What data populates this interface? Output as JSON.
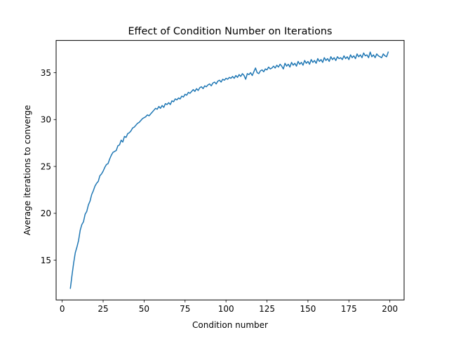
{
  "chart_data": {
    "type": "line",
    "title": "Effect of Condition Number on Iterations",
    "xlabel": "Condition number",
    "ylabel": "Average iterations to converge",
    "xlim": [
      -3.7,
      208.7
    ],
    "ylim": [
      10.76,
      38.44
    ],
    "xticks": [
      0,
      25,
      50,
      75,
      100,
      125,
      150,
      175,
      200
    ],
    "yticks": [
      15,
      20,
      25,
      30,
      35
    ],
    "grid": false,
    "line_color": "#1f77b4",
    "series": [
      {
        "x": [
          5,
          6,
          7,
          8,
          9,
          10,
          11,
          12,
          13,
          14,
          15,
          16,
          17,
          18,
          19,
          20,
          21,
          22,
          23,
          24,
          25,
          26,
          27,
          28,
          29,
          30,
          31,
          32,
          33,
          34,
          35,
          36,
          37,
          38,
          39,
          40,
          41,
          42,
          43,
          44,
          45,
          46,
          47,
          48,
          49,
          50,
          51,
          52,
          53,
          54,
          55,
          56,
          57,
          58,
          59,
          60,
          61,
          62,
          63,
          64,
          65,
          66,
          67,
          68,
          69,
          70,
          71,
          72,
          73,
          74,
          75,
          76,
          77,
          78,
          79,
          80,
          81,
          82,
          83,
          84,
          85,
          86,
          87,
          88,
          89,
          90,
          91,
          92,
          93,
          94,
          95,
          96,
          97,
          98,
          99,
          100,
          101,
          102,
          103,
          104,
          105,
          106,
          107,
          108,
          109,
          110,
          111,
          112,
          113,
          114,
          115,
          116,
          117,
          118,
          119,
          120,
          121,
          122,
          123,
          124,
          125,
          126,
          127,
          128,
          129,
          130,
          131,
          132,
          133,
          134,
          135,
          136,
          137,
          138,
          139,
          140,
          141,
          142,
          143,
          144,
          145,
          146,
          147,
          148,
          149,
          150,
          151,
          152,
          153,
          154,
          155,
          156,
          157,
          158,
          159,
          160,
          161,
          162,
          163,
          164,
          165,
          166,
          167,
          168,
          169,
          170,
          171,
          172,
          173,
          174,
          175,
          176,
          177,
          178,
          179,
          180,
          181,
          182,
          183,
          184,
          185,
          186,
          187,
          188,
          189,
          190,
          191,
          192,
          193,
          194,
          195,
          196,
          197,
          198,
          199
        ],
        "y": [
          12.0,
          13.4,
          14.7,
          15.8,
          16.4,
          17.1,
          18.2,
          18.8,
          19.1,
          19.9,
          20.2,
          20.9,
          21.3,
          22.0,
          22.4,
          22.9,
          23.2,
          23.4,
          24.0,
          24.2,
          24.5,
          24.9,
          25.2,
          25.3,
          25.8,
          26.2,
          26.5,
          26.6,
          26.7,
          27.2,
          27.3,
          27.8,
          27.6,
          28.2,
          28.1,
          28.5,
          28.6,
          28.8,
          29.1,
          29.2,
          29.4,
          29.6,
          29.7,
          29.9,
          30.1,
          30.2,
          30.3,
          30.5,
          30.4,
          30.6,
          30.8,
          31.0,
          31.2,
          31.1,
          31.4,
          31.2,
          31.5,
          31.3,
          31.7,
          31.6,
          31.8,
          31.6,
          32.0,
          31.9,
          32.2,
          32.1,
          32.3,
          32.2,
          32.5,
          32.4,
          32.7,
          32.6,
          32.9,
          32.8,
          33.0,
          33.2,
          33.0,
          33.3,
          33.1,
          33.4,
          33.5,
          33.3,
          33.6,
          33.5,
          33.7,
          33.8,
          33.6,
          33.9,
          34.0,
          33.8,
          34.1,
          34.2,
          34.0,
          34.3,
          34.2,
          34.4,
          34.3,
          34.5,
          34.4,
          34.6,
          34.4,
          34.7,
          34.5,
          34.8,
          34.6,
          34.9,
          34.7,
          34.3,
          34.9,
          34.8,
          35.0,
          34.7,
          35.1,
          35.5,
          35.0,
          34.9,
          35.2,
          35.3,
          35.1,
          35.4,
          35.3,
          35.6,
          35.4,
          35.5,
          35.7,
          35.5,
          35.8,
          35.6,
          35.9,
          35.7,
          35.4,
          36.0,
          35.7,
          35.9,
          35.6,
          36.1,
          35.8,
          36.0,
          35.7,
          36.2,
          35.9,
          36.1,
          35.8,
          36.3,
          36.0,
          36.2,
          35.9,
          36.4,
          36.1,
          36.3,
          36.0,
          36.5,
          36.2,
          36.4,
          36.1,
          36.6,
          36.3,
          36.5,
          36.2,
          36.7,
          36.4,
          36.6,
          36.3,
          36.7,
          36.5,
          36.6,
          36.4,
          36.8,
          36.5,
          36.7,
          36.4,
          36.9,
          36.6,
          36.8,
          36.5,
          37.0,
          36.7,
          36.9,
          36.6,
          37.1,
          36.8,
          36.9,
          36.6,
          37.2,
          36.7,
          36.9,
          36.6,
          37.0,
          36.8,
          36.7,
          36.6,
          37.0,
          36.8,
          36.7,
          37.2
        ]
      }
    ]
  }
}
